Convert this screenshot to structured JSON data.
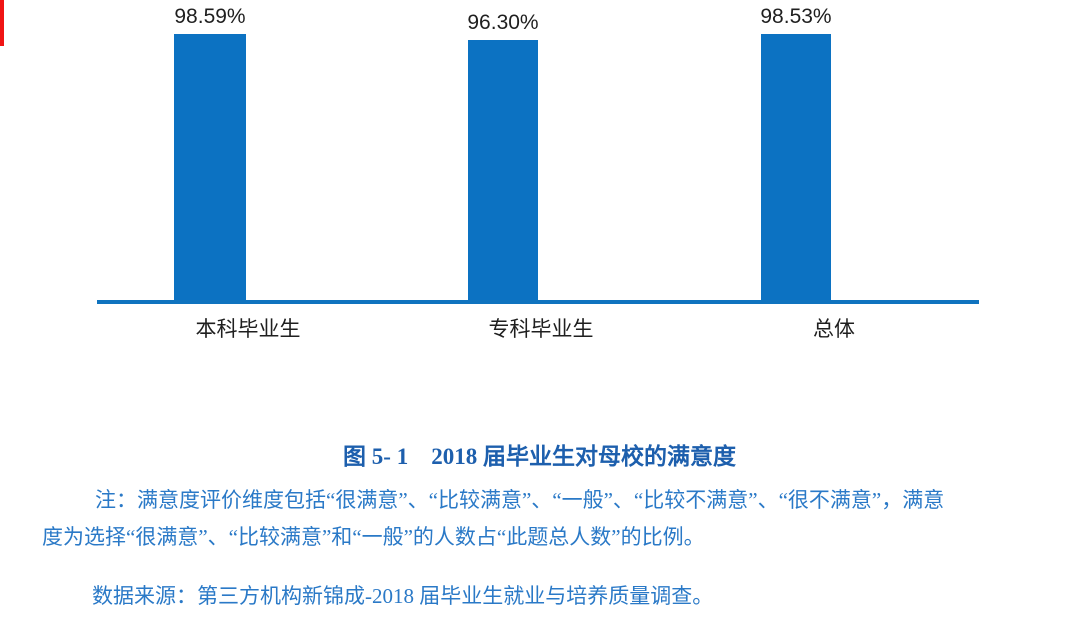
{
  "colors": {
    "bar_blue": "#0c72c2",
    "axis_blue": "#0f73bf",
    "caption_blue": "#1d5fad",
    "note_blue": "#2a79c7",
    "label_dark": "#1f1f1f",
    "edge_red": "#f01414",
    "background": "#ffffff"
  },
  "chart_data": {
    "type": "bar",
    "categories": [
      "本科毕业生",
      "专科毕业生",
      "总体"
    ],
    "values": [
      98.59,
      96.3,
      98.53
    ],
    "data_labels": [
      "98.59%",
      "96.30%",
      "98.53%"
    ],
    "title": "",
    "xlabel": "",
    "ylabel": "",
    "ylim": [
      0,
      100
    ],
    "grid": false,
    "legend": false,
    "axis_ticks_visible": false
  },
  "caption": {
    "text": "图 5- 1　2018 届毕业生对母校的满意度"
  },
  "note": {
    "line1": "注：满意度评价维度包括“很满意”、“比较满意”、“一般”、“比较不满意”、“很不满意”，满意",
    "line2": "度为选择“很满意”、“比较满意”和“一般”的人数占“此题总人数”的比例。"
  },
  "source": {
    "text": "数据来源：第三方机构新锦成-2018 届毕业生就业与培养质量调查。"
  }
}
